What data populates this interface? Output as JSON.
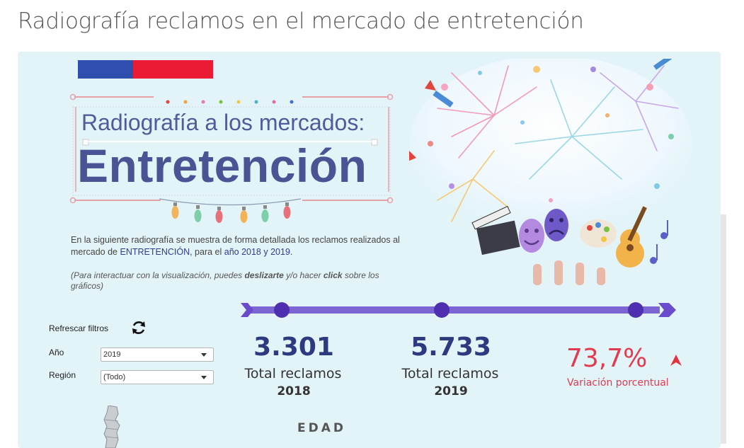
{
  "page": {
    "title": "Radiografía reclamos en el mercado de entretención"
  },
  "colors": {
    "flag_blue": "#2e4fad",
    "flag_red": "#ec1b35",
    "timeline": "#6a4bcc",
    "accent_red": "#e23a4e",
    "kpi_blue": "#2e3a80"
  },
  "header": {
    "headline_small": "Radiografía a los mercados:",
    "headline_big": "Entretención"
  },
  "intro": {
    "part1": "En la siguiente radiografía se muestra de forma detallada los reclamos realizados al mercado de ",
    "market": "ENTRETENCIÓN",
    "part2": ", para el ",
    "years": "año 2018 y 2019",
    "part3": "."
  },
  "note": {
    "part1": "(Para interactuar con la visualización, puedes ",
    "bold1": "deslizarte",
    "part2": " y/o hacer ",
    "bold2": "click",
    "part3": " sobre los gráficos)"
  },
  "filters": {
    "refresh_label": "Refrescar filtros",
    "refresh_icon": "refresh-icon",
    "year_label": "Año",
    "year_value": "2019",
    "region_label": "Región",
    "region_value": "(Todo)"
  },
  "kpis": {
    "total_2018": {
      "value": "3.301",
      "label": "Total reclamos",
      "year": "2018"
    },
    "total_2019": {
      "value": "5.733",
      "label": "Total reclamos",
      "year": "2019"
    },
    "variation": {
      "value": "73,7%",
      "label": "Variación porcentual",
      "icon": "arrow-up-icon"
    }
  },
  "section": {
    "edad_title": "EDAD"
  }
}
